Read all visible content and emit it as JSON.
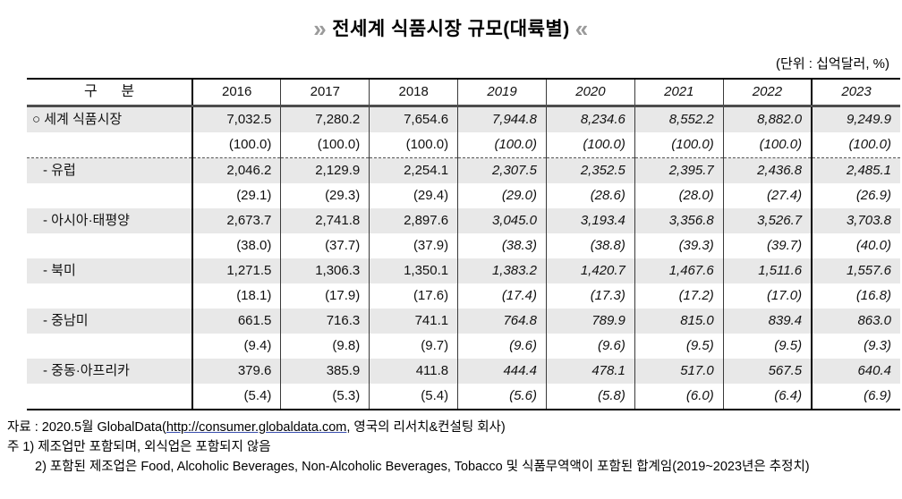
{
  "title": {
    "left_arrow": "»",
    "text": "전세계 식품시장 규모(대륙별)",
    "right_arrow": "«"
  },
  "unit_label": "(단위 : 십억달러, %)",
  "table": {
    "category_header": "구      분",
    "years": [
      "2016",
      "2017",
      "2018",
      "2019",
      "2020",
      "2021",
      "2022",
      "2023"
    ],
    "estimated_from_index": 3,
    "rows": [
      {
        "label": "○ 세계 식품시장",
        "values": [
          "7,032.5",
          "7,280.2",
          "7,654.6",
          "7,944.8",
          "8,234.6",
          "8,552.2",
          "8,882.0",
          "9,249.9"
        ],
        "shares": [
          "(100.0)",
          "(100.0)",
          "(100.0)",
          "(100.0)",
          "(100.0)",
          "(100.0)",
          "(100.0)",
          "(100.0)"
        ]
      },
      {
        "label": "- 유럽",
        "values": [
          "2,046.2",
          "2,129.9",
          "2,254.1",
          "2,307.5",
          "2,352.5",
          "2,395.7",
          "2,436.8",
          "2,485.1"
        ],
        "shares": [
          "(29.1)",
          "(29.3)",
          "(29.4)",
          "(29.0)",
          "(28.6)",
          "(28.0)",
          "(27.4)",
          "(26.9)"
        ]
      },
      {
        "label": "- 아시아·태평양",
        "values": [
          "2,673.7",
          "2,741.8",
          "2,897.6",
          "3,045.0",
          "3,193.4",
          "3,356.8",
          "3,526.7",
          "3,703.8"
        ],
        "shares": [
          "(38.0)",
          "(37.7)",
          "(37.9)",
          "(38.3)",
          "(38.8)",
          "(39.3)",
          "(39.7)",
          "(40.0)"
        ]
      },
      {
        "label": "- 북미",
        "values": [
          "1,271.5",
          "1,306.3",
          "1,350.1",
          "1,383.2",
          "1,420.7",
          "1,467.6",
          "1,511.6",
          "1,557.6"
        ],
        "shares": [
          "(18.1)",
          "(17.9)",
          "(17.6)",
          "(17.4)",
          "(17.3)",
          "(17.2)",
          "(17.0)",
          "(16.8)"
        ]
      },
      {
        "label": "- 중남미",
        "values": [
          "661.5",
          "716.3",
          "741.1",
          "764.8",
          "789.9",
          "815.0",
          "839.4",
          "863.0"
        ],
        "shares": [
          "(9.4)",
          "(9.8)",
          "(9.7)",
          "(9.6)",
          "(9.6)",
          "(9.5)",
          "(9.5)",
          "(9.3)"
        ]
      },
      {
        "label": "- 중동·아프리카",
        "values": [
          "379.6",
          "385.9",
          "411.8",
          "444.4",
          "478.1",
          "517.0",
          "567.5",
          "640.4"
        ],
        "shares": [
          "(5.4)",
          "(5.3)",
          "(5.4)",
          "(5.6)",
          "(5.8)",
          "(6.0)",
          "(6.4)",
          "(6.9)"
        ]
      }
    ]
  },
  "footer": {
    "source_prefix": "자료 : 2020.5월 GlobalData(",
    "source_url": "http://consumer.globaldata.com",
    "source_suffix": ", 영국의 리서치&컨설팅 회사)",
    "note1": "주 1) 제조업만 포함되며, 외식업은 포함되지 않음",
    "note2": "2) 포함된 제조업은 Food, Alcoholic Beverages, Non-Alcoholic Beverages, Tobacco 및 식품무역액이 포함된 합계임(2019~2023년은 추정치)"
  },
  "colors": {
    "row_shading": "#e8e8e8",
    "border_dark": "#000000",
    "header_rule": "#4d4d4d",
    "arrow_gray": "#9a9a9a"
  }
}
